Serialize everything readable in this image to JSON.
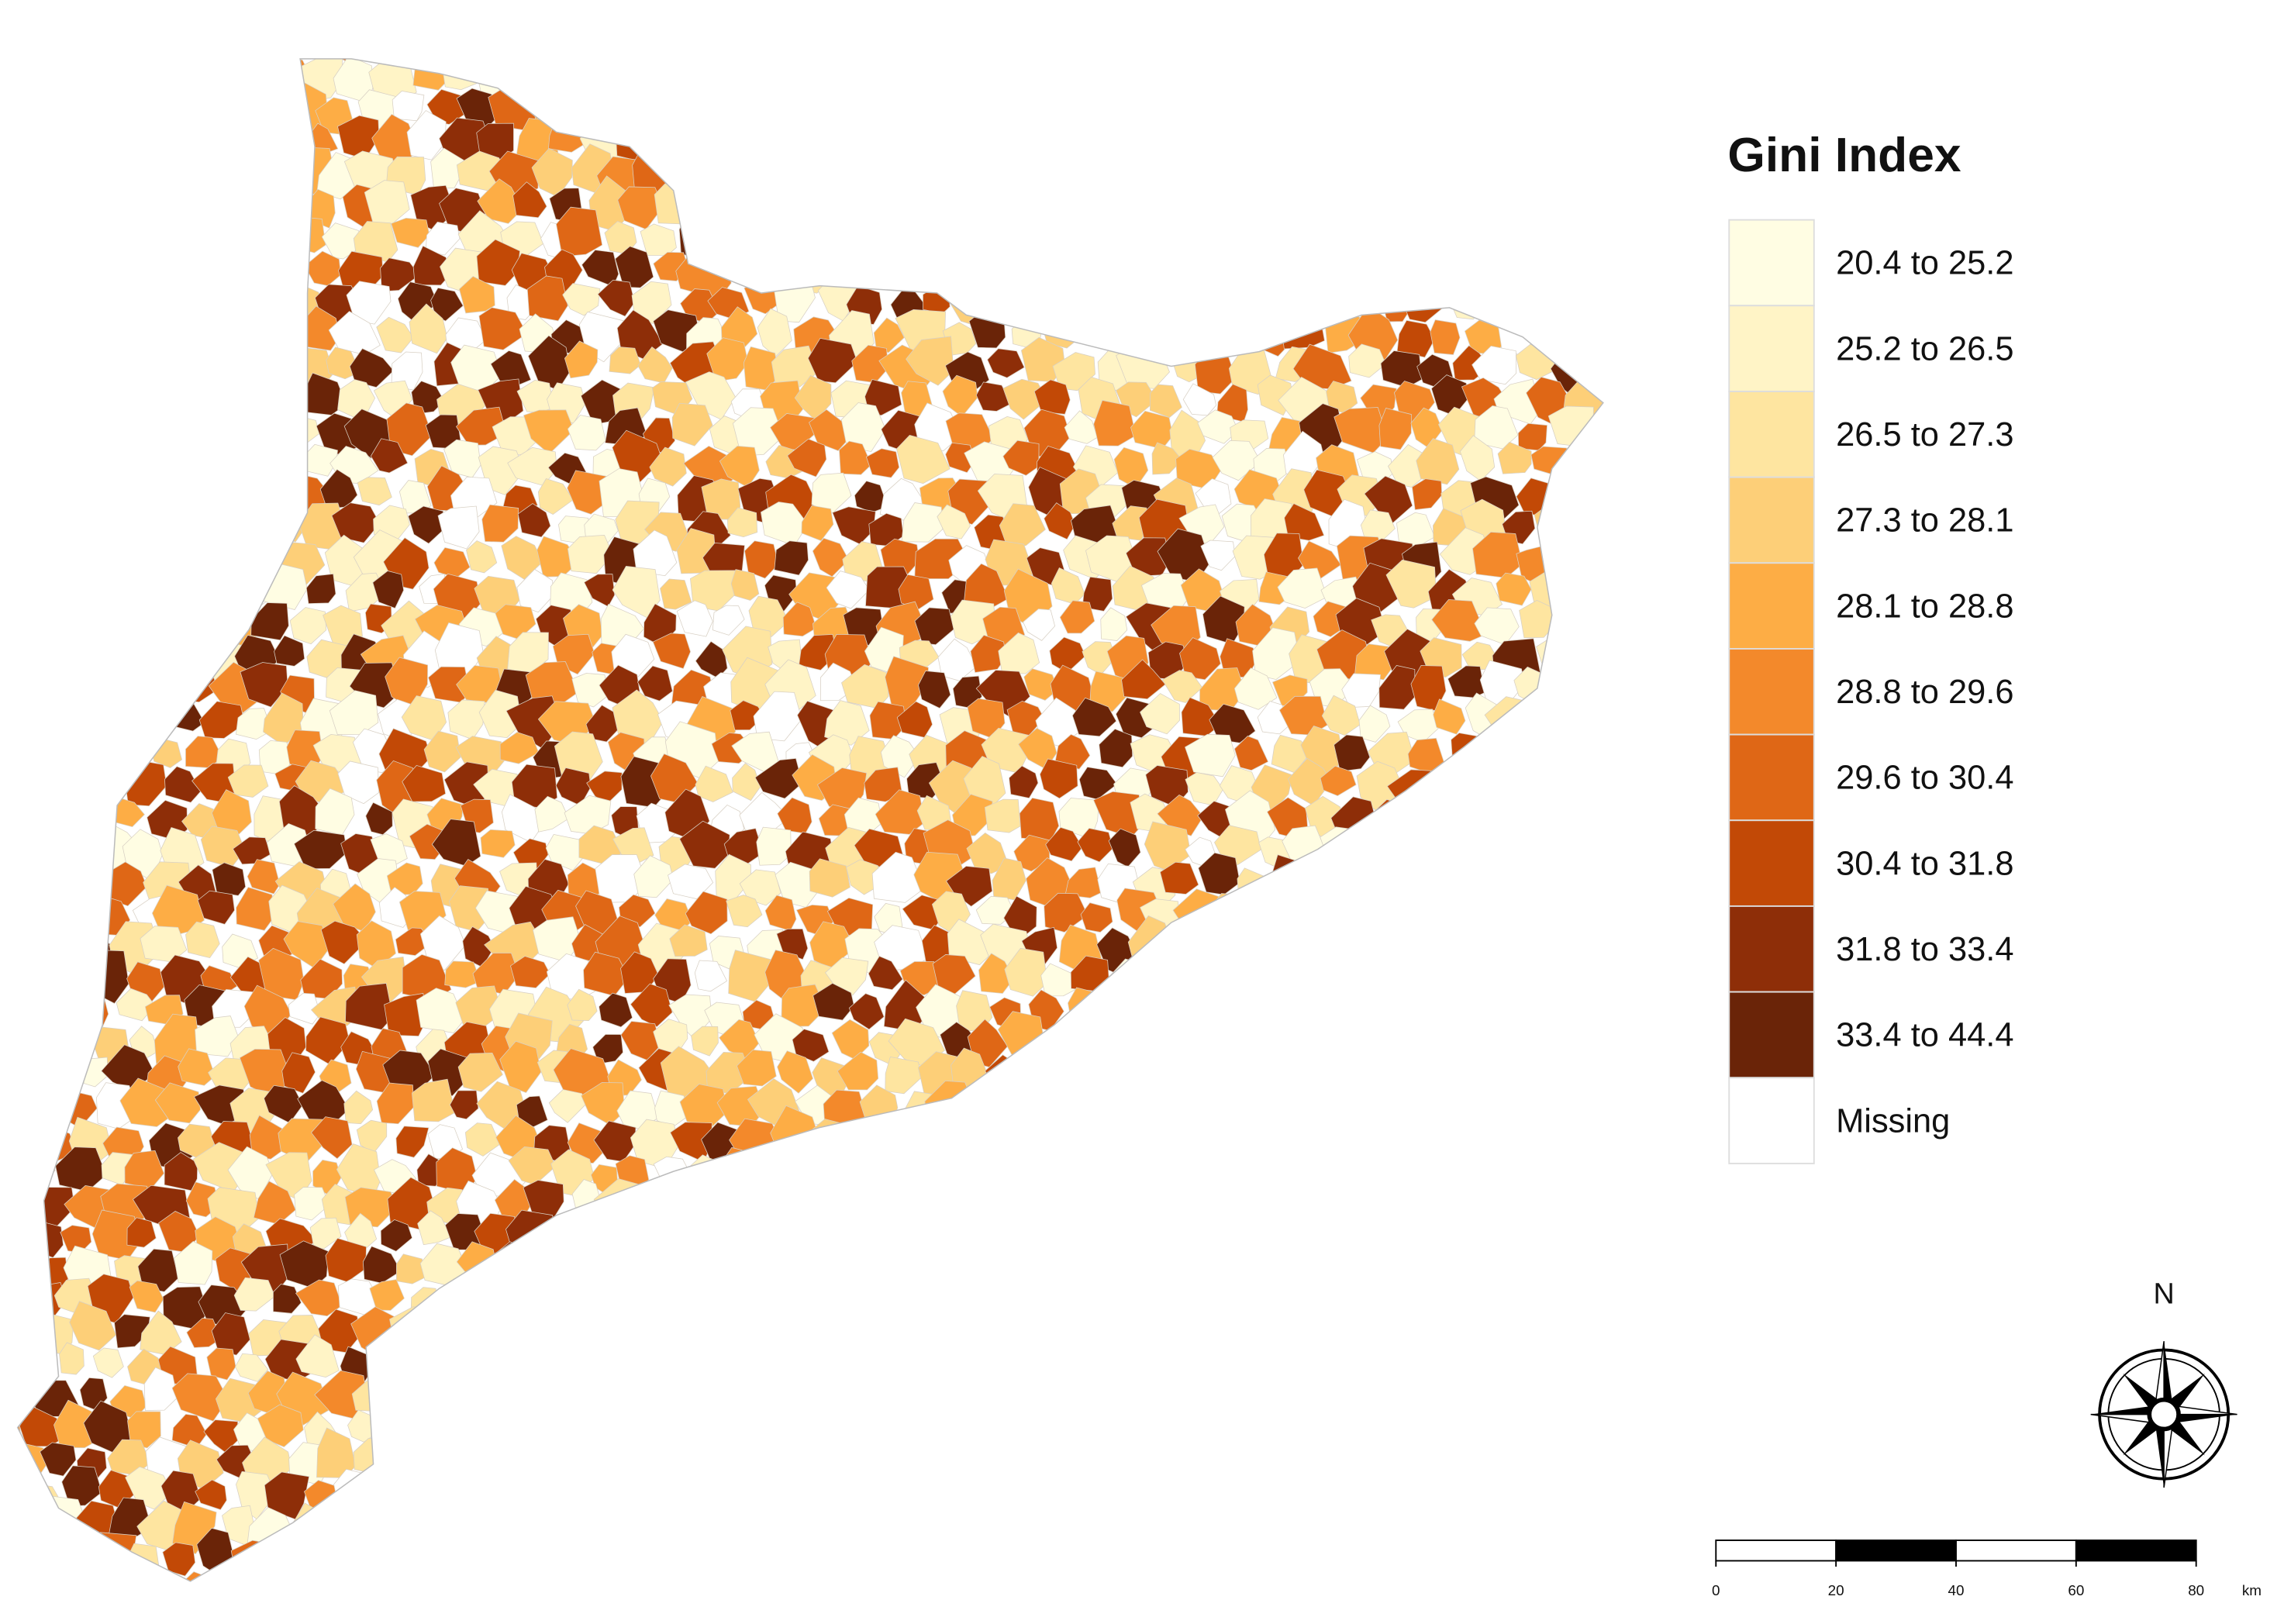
{
  "title": "Gini Index",
  "legend": [
    {
      "label": "20.4 to 25.2",
      "color": "#fffde3"
    },
    {
      "label": "25.2 to 26.5",
      "color": "#fff4c6"
    },
    {
      "label": "26.5 to 27.3",
      "color": "#fee5a0"
    },
    {
      "label": "27.3 to 28.1",
      "color": "#fdcf78"
    },
    {
      "label": "28.1 to 28.8",
      "color": "#fdad45"
    },
    {
      "label": "28.8 to 29.6",
      "color": "#f3892b"
    },
    {
      "label": "29.6 to 30.4",
      "color": "#df6716"
    },
    {
      "label": "30.4 to 31.8",
      "color": "#c24906"
    },
    {
      "label": "31.8 to 33.4",
      "color": "#8e2e08"
    },
    {
      "label": "33.4 to 44.4",
      "color": "#6a2408"
    },
    {
      "label": "Missing",
      "color": "#ffffff"
    }
  ],
  "north": "N",
  "scale_bar": {
    "ticks": [
      0,
      20,
      40,
      60,
      80
    ],
    "unit": "km"
  }
}
